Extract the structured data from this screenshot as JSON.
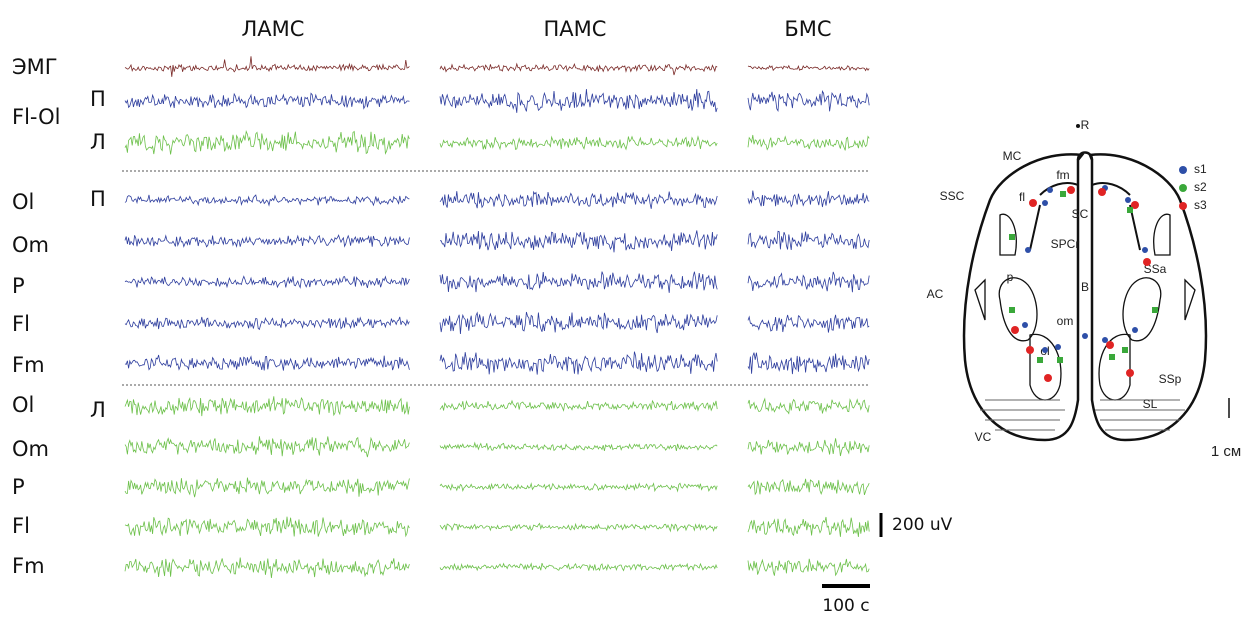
{
  "columns": [
    "ЛАМС",
    "ПАМС",
    "БМС"
  ],
  "left_labels": [
    "ЭМГ",
    "Fl-Ol",
    "Ol",
    "Om",
    "P",
    "Fl",
    "Fm",
    "Ol",
    "Om",
    "P",
    "Fl",
    "Fm"
  ],
  "side_labels": [
    "П",
    "Л",
    "П",
    "Л"
  ],
  "amplitude_scale": "200 uV",
  "time_scale": "100 с",
  "brain": {
    "labels": [
      "R",
      "MC",
      "SSC",
      "AC",
      "VC",
      "fm",
      "fl",
      "SC",
      "SPCr",
      "B",
      "p",
      "SSa",
      "om",
      "ol",
      "SSp",
      "SL"
    ],
    "legend": [
      "s1",
      "s2",
      "s3"
    ],
    "scale": "1 см"
  }
}
